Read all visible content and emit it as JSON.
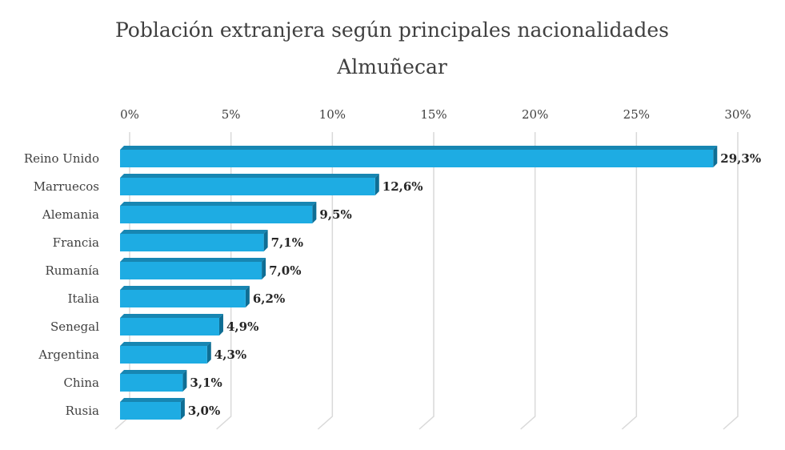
{
  "chart_data": {
    "type": "bar",
    "orientation": "horizontal",
    "title": "Población extranjera según principales nacionalidades",
    "subtitle": "Almuñecar",
    "categories": [
      "Reino Unido",
      "Marruecos",
      "Alemania",
      "Francia",
      "Rumanía",
      "Italia",
      "Senegal",
      "Argentina",
      "China",
      "Rusia"
    ],
    "values": [
      29.3,
      12.6,
      9.5,
      7.1,
      7.0,
      6.2,
      4.9,
      4.3,
      3.1,
      3.0
    ],
    "data_labels": [
      "29,3%",
      "12,6%",
      "9,5%",
      "7,1%",
      "7,0%",
      "6,2%",
      "4,9%",
      "4,3%",
      "3,1%",
      "3,0%"
    ],
    "xticks": [
      0,
      5,
      10,
      15,
      20,
      25,
      30
    ],
    "xtick_labels": [
      "0%",
      "5%",
      "10%",
      "15%",
      "20%",
      "25%",
      "30%"
    ],
    "xlim": [
      0,
      30
    ],
    "xlabel": "",
    "ylabel": "",
    "grid": true,
    "legend": "none",
    "colors": {
      "bar_front": "#1EACE3",
      "bar_top": "#1786B2",
      "bar_side": "#0F6E94",
      "grid": "#D9D9D9",
      "text": "#404040",
      "label": "#262626"
    }
  }
}
